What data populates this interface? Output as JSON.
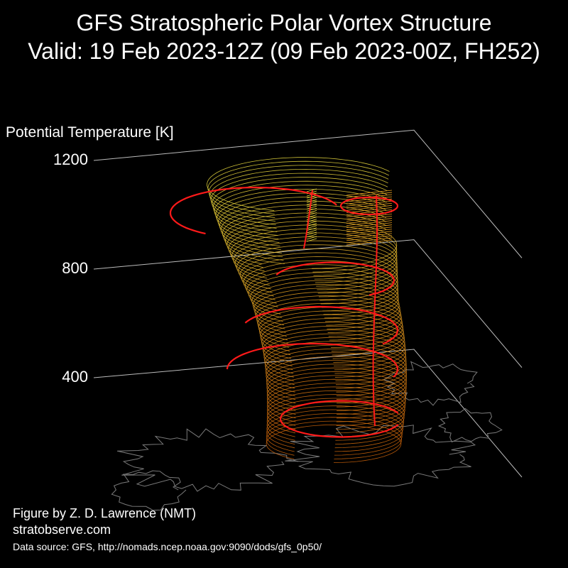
{
  "header": {
    "title": "GFS Stratospheric Polar Vortex Structure",
    "subtitle": "Valid: 19 Feb 2023-12Z  (09 Feb 2023-00Z, FH252)"
  },
  "chart_data": {
    "type": "3d-surface",
    "zlabel": "Potential Temperature [K]",
    "z_ticks": [
      {
        "value": 400,
        "label": "400"
      },
      {
        "value": 800,
        "label": "800"
      },
      {
        "value": 1200,
        "label": "1200"
      }
    ],
    "zlim": [
      300,
      1300
    ],
    "background": "#000000",
    "colors": {
      "edge": "#ff1a1a",
      "surface_low": "#d4660a",
      "surface_mid": "#e8a020",
      "surface_high": "#f0e040",
      "coastline": "#7a7a7a",
      "axis": "#bbbbbb"
    }
  },
  "footer": {
    "credit": "Figure by Z. D. Lawrence (NMT)",
    "site": "stratobserve.com",
    "source": "Data source: GFS, http://nomads.ncep.noaa.gov:9090/dods/gfs_0p50/"
  }
}
